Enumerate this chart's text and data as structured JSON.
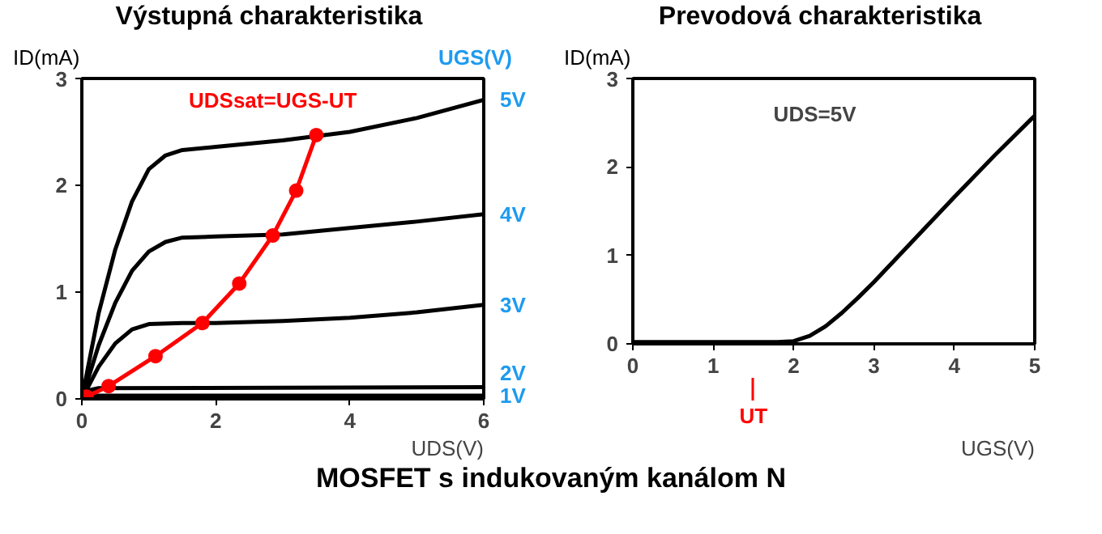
{
  "chart_data": [
    {
      "type": "line",
      "title": "Výstupná charakteristika",
      "xlabel": "UDS(V)",
      "ylabel": "ID(mA)",
      "legend_title": "UGS(V)",
      "xlim": [
        0,
        6
      ],
      "ylim": [
        0,
        3
      ],
      "xticks": [
        0,
        2,
        4,
        6
      ],
      "yticks": [
        0,
        1,
        2,
        3
      ],
      "grid": false,
      "legend": "right",
      "marker": "none",
      "annotations": [
        "MOSFET s indukovaným kanálom N"
      ],
      "series": [
        {
          "name": "5V",
          "color": "#000000",
          "x": [
            0,
            0.25,
            0.5,
            0.75,
            1,
            1.25,
            1.5,
            2,
            3,
            4,
            5,
            6
          ],
          "values": [
            0,
            0.8,
            1.4,
            1.85,
            2.15,
            2.28,
            2.33,
            2.36,
            2.42,
            2.5,
            2.63,
            2.8
          ]
        },
        {
          "name": "4V",
          "color": "#000000",
          "x": [
            0,
            0.25,
            0.5,
            0.75,
            1,
            1.25,
            1.5,
            2,
            3,
            4,
            5,
            6
          ],
          "values": [
            0,
            0.5,
            0.9,
            1.2,
            1.38,
            1.47,
            1.51,
            1.52,
            1.54,
            1.6,
            1.66,
            1.73
          ]
        },
        {
          "name": "3V",
          "color": "#000000",
          "x": [
            0,
            0.25,
            0.5,
            0.75,
            1,
            1.5,
            2,
            3,
            4,
            5,
            6
          ],
          "values": [
            0,
            0.3,
            0.52,
            0.65,
            0.7,
            0.71,
            0.71,
            0.73,
            0.76,
            0.81,
            0.88
          ]
        },
        {
          "name": "2V",
          "color": "#000000",
          "x": [
            0,
            0.1,
            0.25,
            6
          ],
          "values": [
            0,
            0.08,
            0.1,
            0.11
          ]
        },
        {
          "name": "1V",
          "color": "#000000",
          "x": [
            0,
            6
          ],
          "values": [
            0.03,
            0.03
          ]
        },
        {
          "name": "UDSsat=UGS-UT",
          "color": "#ff0000",
          "marker": "circle",
          "x": [
            0.07,
            0.4,
            1.1,
            1.8,
            2.35,
            2.85,
            3.2,
            3.5
          ],
          "values": [
            0.02,
            0.12,
            0.4,
            0.71,
            1.08,
            1.53,
            1.95,
            2.47
          ]
        }
      ]
    },
    {
      "type": "line",
      "title": "Prevodová charakteristika",
      "xlabel": "UGS(V)",
      "ylabel": "ID(mA)",
      "xlim": [
        0,
        5
      ],
      "ylim": [
        0,
        3
      ],
      "xticks": [
        0,
        1,
        2,
        3,
        4,
        5
      ],
      "yticks": [
        0,
        1,
        2,
        3
      ],
      "grid": false,
      "marker": "none",
      "annotations": [
        "UDS=5V"
      ],
      "ref_lines": [
        {
          "axis": "x",
          "value": 1.5,
          "label": "UT",
          "color": "#ff0000"
        }
      ],
      "series": [
        {
          "color": "#000000",
          "x": [
            0,
            1,
            1.8,
            2,
            2.2,
            2.4,
            2.6,
            2.8,
            3,
            3.5,
            4,
            4.5,
            5
          ],
          "values": [
            0.02,
            0.02,
            0.02,
            0.03,
            0.09,
            0.2,
            0.35,
            0.52,
            0.7,
            1.18,
            1.66,
            2.13,
            2.58
          ]
        }
      ]
    }
  ]
}
